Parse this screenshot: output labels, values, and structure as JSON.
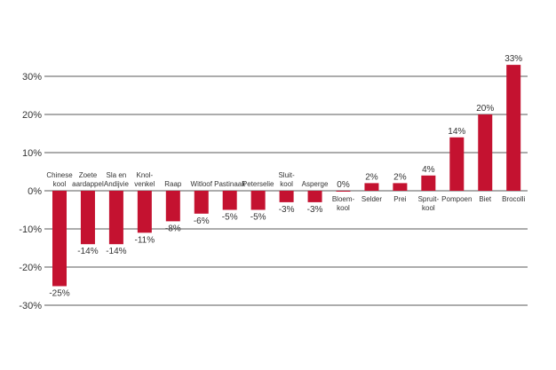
{
  "chart_data": {
    "type": "bar",
    "categories": [
      [
        "Chinese",
        "kool"
      ],
      [
        "Zoete",
        "aardappel"
      ],
      [
        "Sla en",
        "Andijvie"
      ],
      [
        "Knol-",
        "venkel"
      ],
      [
        "Raap"
      ],
      [
        "Witloof"
      ],
      [
        "Pastinaak"
      ],
      [
        "Peterselie"
      ],
      [
        "Sluit-",
        "kool"
      ],
      [
        "Asperge"
      ],
      [
        "Bloem-",
        "kool"
      ],
      [
        "Selder"
      ],
      [
        "Prei"
      ],
      [
        "Spruit-",
        "kool"
      ],
      [
        "Pompoen"
      ],
      [
        "Biet"
      ],
      [
        "Brocolli"
      ]
    ],
    "values": [
      -25,
      -14,
      -14,
      -11,
      -8,
      -6,
      -5,
      -5,
      -3,
      -3,
      0,
      2,
      2,
      4,
      14,
      20,
      33
    ],
    "value_labels": [
      "-25%",
      "-14%",
      "-14%",
      "-11%",
      "-8%",
      "-6%",
      "-5%",
      "-5%",
      "-3%",
      "-3%",
      "0%",
      "2%",
      "2%",
      "4%",
      "14%",
      "20%",
      "33%"
    ],
    "yticks": [
      30,
      20,
      10,
      0,
      -10,
      -20,
      -30
    ],
    "ytick_labels": [
      "30%",
      "20%",
      "10%",
      "0%",
      "-10%",
      "-20%",
      "-30%"
    ],
    "ylim": [
      -30,
      33
    ],
    "grid": true,
    "bar_color": "#c41230"
  }
}
